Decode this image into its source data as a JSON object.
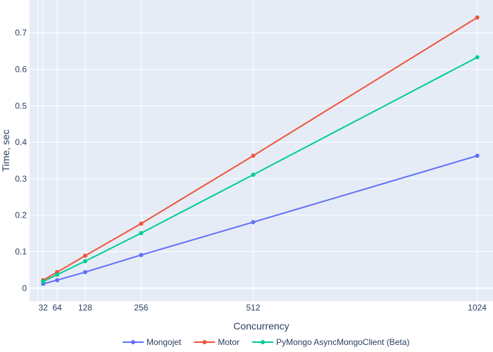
{
  "chart_data": {
    "type": "line",
    "xlabel": "Concurrency",
    "ylabel": "Time, sec",
    "x": [
      32,
      64,
      128,
      256,
      512,
      1024
    ],
    "x_ticks": [
      32,
      64,
      128,
      256,
      512,
      1024
    ],
    "x_range": [
      1,
      1060
    ],
    "y_ticks": [
      0,
      0.1,
      0.2,
      0.3,
      0.4,
      0.5,
      0.6,
      0.7
    ],
    "y_range": [
      -0.036,
      0.79
    ],
    "grid": true,
    "legend_position": "bottom",
    "series": [
      {
        "name": "Mongojet",
        "color": "#636efa",
        "values": [
          0.012,
          0.022,
          0.044,
          0.091,
          0.181,
          0.363
        ]
      },
      {
        "name": "Motor",
        "color": "#ef553b",
        "values": [
          0.022,
          0.044,
          0.089,
          0.177,
          0.363,
          0.742
        ]
      },
      {
        "name": "PyMongo AsyncMongoClient (Beta)",
        "color": "#00cc96",
        "values": [
          0.018,
          0.037,
          0.074,
          0.151,
          0.311,
          0.633
        ]
      }
    ]
  }
}
